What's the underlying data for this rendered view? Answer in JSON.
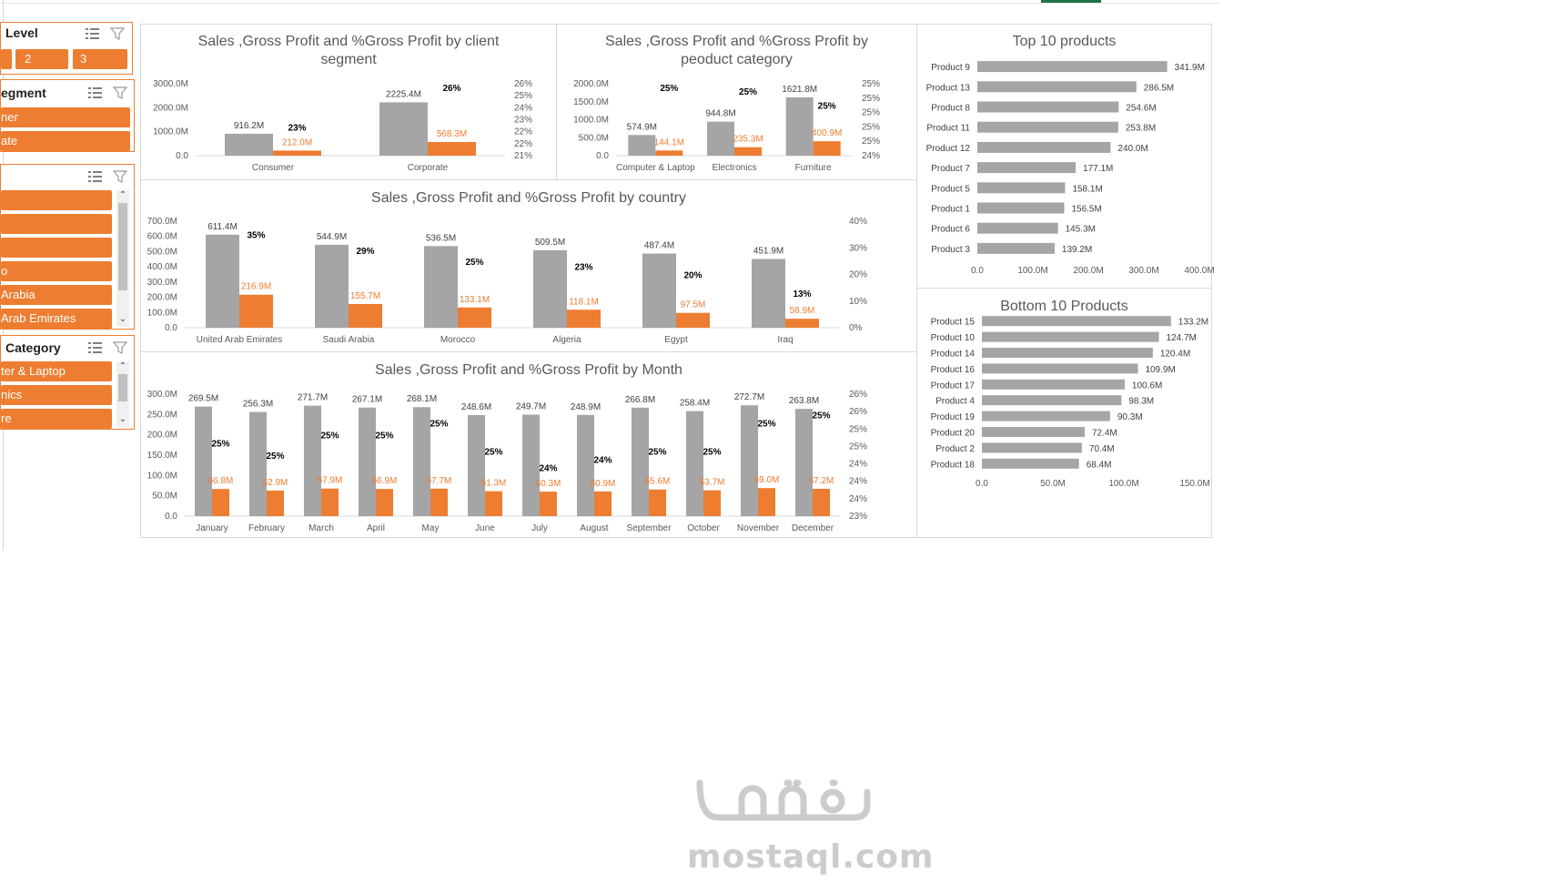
{
  "slicers": [
    {
      "id": "level",
      "title": "Level",
      "items": [
        "",
        "2",
        "3"
      ]
    },
    {
      "id": "segment",
      "title": "egment",
      "items": [
        "ner",
        "ate"
      ]
    },
    {
      "id": "country",
      "title": "",
      "items": [
        "",
        "",
        "",
        "o",
        "Arabia",
        "Arab Emirates"
      ]
    },
    {
      "id": "category",
      "title": "Category",
      "items": [
        "ter & Laptop",
        "nics",
        "re"
      ]
    }
  ],
  "colors": {
    "sales": "#a5a5a5",
    "profit": "#ed7d31",
    "label": "#404040",
    "pct": "#000000",
    "axis": "#595959"
  },
  "chart_data": [
    {
      "id": "segment",
      "type": "bar",
      "title": "Sales ,Gross Profit and %Gross Profit by client segment",
      "categories": [
        "Consumer",
        "Corporate"
      ],
      "series": [
        {
          "values": [
            916.2,
            2225.4
          ],
          "labels": [
            "916.2M",
            "2225.4M"
          ]
        },
        {
          "values": [
            212.0,
            568.3
          ],
          "labels": [
            "212.0M",
            "568.3M"
          ]
        },
        {
          "values": [
            23,
            26
          ],
          "labels": [
            "23%",
            "26%"
          ]
        }
      ],
      "ylim": [
        0,
        3000
      ],
      "yticks": [
        "3000.0M",
        "2000.0M",
        "1000.0M",
        "0.0"
      ],
      "y2lim": [
        21,
        26
      ],
      "y2ticks": [
        "26%",
        "25%",
        "24%",
        "23%",
        "22%",
        "22%",
        "21%"
      ]
    },
    {
      "id": "category",
      "type": "bar",
      "title": "Sales ,Gross Profit and %Gross Profit by peoduct category",
      "categories": [
        "Computer & Laptop",
        "Electronics",
        "Furniture"
      ],
      "series": [
        {
          "values": [
            574.9,
            944.8,
            1621.8
          ],
          "labels": [
            "574.9M",
            "944.8M",
            "1621.8M"
          ]
        },
        {
          "values": [
            144.1,
            235.3,
            400.9
          ],
          "labels": [
            "144.1M",
            "235.3M",
            "400.9M"
          ]
        },
        {
          "values": [
            25.1,
            24.9,
            24.7
          ],
          "labels": [
            "25%",
            "25%",
            "25%"
          ]
        }
      ],
      "ylim": [
        0,
        2000
      ],
      "yticks": [
        "2000.0M",
        "1500.0M",
        "1000.0M",
        "500.0M",
        "0.0"
      ],
      "y2lim": [
        24,
        25
      ],
      "y2ticks": [
        "25%",
        "25%",
        "25%",
        "25%",
        "25%",
        "24%"
      ]
    },
    {
      "id": "country",
      "type": "bar",
      "title": "Sales ,Gross Profit and %Gross Profit by country",
      "categories": [
        "United Arab Emirates",
        "Saudi Arabia",
        "Morocco",
        "Algeria",
        "Egypt",
        "Iraq"
      ],
      "series": [
        {
          "values": [
            611.4,
            544.9,
            536.5,
            509.5,
            487.4,
            451.9
          ],
          "labels": [
            "611.4M",
            "544.9M",
            "536.5M",
            "509.5M",
            "487.4M",
            "451.9M"
          ]
        },
        {
          "values": [
            216.9,
            155.7,
            133.1,
            118.1,
            97.5,
            58.9
          ],
          "labels": [
            "216.9M",
            "155.7M",
            "133.1M",
            "118.1M",
            "97.5M",
            "58.9M"
          ]
        },
        {
          "values": [
            35,
            29,
            25,
            23,
            20,
            13
          ],
          "labels": [
            "35%",
            "29%",
            "25%",
            "23%",
            "20%",
            "13%"
          ]
        }
      ],
      "ylim": [
        0,
        700
      ],
      "yticks": [
        "700.0M",
        "600.0M",
        "500.0M",
        "400.0M",
        "300.0M",
        "200.0M",
        "100.0M",
        "0.0"
      ],
      "y2lim": [
        0,
        40
      ],
      "y2ticks": [
        "40%",
        "30%",
        "20%",
        "10%",
        "0%"
      ]
    },
    {
      "id": "month",
      "type": "bar",
      "title": "Sales ,Gross Profit and %Gross Profit by Month",
      "categories": [
        "January",
        "February",
        "March",
        "April",
        "May",
        "June",
        "July",
        "August",
        "September",
        "October",
        "November",
        "December"
      ],
      "series": [
        {
          "values": [
            269.5,
            256.3,
            271.7,
            267.1,
            268.1,
            248.6,
            249.7,
            248.9,
            266.8,
            258.4,
            272.7,
            263.8
          ],
          "labels": [
            "269.5M",
            "256.3M",
            "271.7M",
            "267.1M",
            "268.1M",
            "248.6M",
            "249.7M",
            "248.9M",
            "266.8M",
            "258.4M",
            "272.7M",
            "263.8M"
          ]
        },
        {
          "values": [
            66.8,
            62.9,
            67.9,
            66.9,
            67.7,
            61.3,
            60.3,
            60.9,
            65.6,
            63.7,
            69.0,
            67.2
          ],
          "labels": [
            "66.8M",
            "62.9M",
            "67.9M",
            "66.9M",
            "67.7M",
            "61.3M",
            "60.3M",
            "60.9M",
            "65.6M",
            "63.7M",
            "69.0M",
            "67.2M"
          ]
        },
        {
          "values": [
            24.8,
            24.5,
            25.0,
            25.0,
            25.3,
            24.6,
            24.2,
            24.4,
            24.6,
            24.6,
            25.3,
            25.5
          ],
          "labels": [
            "25%",
            "25%",
            "25%",
            "25%",
            "25%",
            "25%",
            "24%",
            "24%",
            "25%",
            "25%",
            "25%",
            "25%"
          ]
        }
      ],
      "ylim": [
        0,
        300
      ],
      "yticks": [
        "300.0M",
        "250.0M",
        "200.0M",
        "150.0M",
        "100.0M",
        "50.0M",
        "0.0"
      ],
      "y2lim": [
        23,
        26
      ],
      "y2ticks": [
        "26%",
        "26%",
        "25%",
        "25%",
        "24%",
        "24%",
        "24%",
        "23%"
      ]
    },
    {
      "id": "top10",
      "type": "bar",
      "title": "Top 10 products",
      "categories": [
        "Product 9",
        "Product 13",
        "Product 8",
        "Product 11",
        "Product 12",
        "Product 7",
        "Product 5",
        "Product 1",
        "Product 6",
        "Product 3"
      ],
      "values": [
        341.9,
        286.5,
        254.6,
        253.8,
        240.0,
        177.1,
        158.1,
        156.5,
        145.3,
        139.2
      ],
      "labels": [
        "341.9M",
        "286.5M",
        "254.6M",
        "253.8M",
        "240.0M",
        "177.1M",
        "158.1M",
        "156.5M",
        "145.3M",
        "139.2M"
      ],
      "xlim": [
        0,
        400
      ],
      "xticks": [
        "0.0",
        "100.0M",
        "200.0M",
        "300.0M",
        "400.0M"
      ]
    },
    {
      "id": "bottom10",
      "type": "bar",
      "title": "Bottom 10 Products",
      "categories": [
        "Product 15",
        "Product 10",
        "Product 14",
        "Product 16",
        "Product 17",
        "Product 4",
        "Product 19",
        "Product 20",
        "Product 2",
        "Product 18"
      ],
      "values": [
        133.2,
        124.7,
        120.4,
        109.9,
        100.6,
        98.3,
        90.3,
        72.4,
        70.4,
        68.4
      ],
      "labels": [
        "133.2M",
        "124.7M",
        "120.4M",
        "109.9M",
        "100.6M",
        "98.3M",
        "90.3M",
        "72.4M",
        "70.4M",
        "68.4M"
      ],
      "xlim": [
        0,
        150
      ],
      "xticks": [
        "0.0",
        "50.0M",
        "100.0M",
        "150.0M"
      ]
    }
  ],
  "watermark": {
    "arabic": "مستقل",
    "latin": "mostaql.com"
  }
}
